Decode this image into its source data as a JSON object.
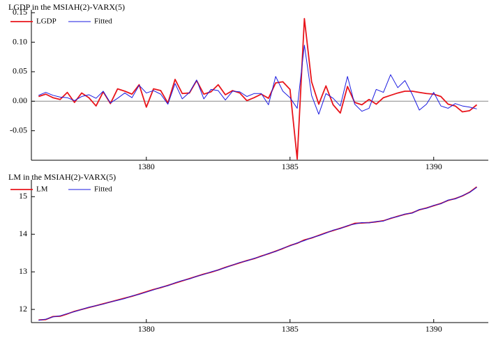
{
  "chart_data": [
    {
      "type": "line",
      "title": "LGDP in the MSIAH(2)-VARX(5)",
      "legend": "upper left",
      "zero_line": true,
      "x": [
        1376.25,
        1376.5,
        1376.75,
        1377,
        1377.25,
        1377.5,
        1377.75,
        1378,
        1378.25,
        1378.5,
        1378.75,
        1379,
        1379.25,
        1379.5,
        1379.75,
        1380,
        1380.25,
        1380.5,
        1380.75,
        1381,
        1381.25,
        1381.5,
        1381.75,
        1382,
        1382.25,
        1382.5,
        1382.75,
        1383,
        1383.25,
        1383.5,
        1383.75,
        1384,
        1384.25,
        1384.5,
        1384.75,
        1385,
        1385.25,
        1385.5,
        1385.75,
        1386,
        1386.25,
        1386.5,
        1386.75,
        1387,
        1387.25,
        1387.5,
        1387.75,
        1388,
        1388.25,
        1388.5,
        1388.75,
        1389,
        1389.25,
        1389.5,
        1389.75,
        1390,
        1390.25,
        1390.5,
        1390.75,
        1391,
        1391.25,
        1391.5
      ],
      "series": [
        {
          "name": "LGDP",
          "color": "#e8141b",
          "values": [
            0.008,
            0.012,
            0.006,
            0.003,
            0.015,
            -0.002,
            0.014,
            0.006,
            -0.008,
            0.016,
            -0.004,
            0.021,
            0.017,
            0.012,
            0.028,
            -0.01,
            0.021,
            0.018,
            -0.003,
            0.037,
            0.013,
            0.014,
            0.035,
            0.012,
            0.016,
            0.028,
            0.011,
            0.018,
            0.014,
            0.001,
            0.006,
            0.012,
            0.005,
            0.031,
            0.033,
            0.02,
            -0.098,
            0.14,
            0.033,
            -0.005,
            0.026,
            -0.006,
            -0.02,
            0.025,
            -0.002,
            -0.006,
            0.003,
            -0.005,
            0.006,
            0.01,
            0.014,
            0.017,
            0.017,
            0.015,
            0.013,
            0.012,
            0.008,
            -0.005,
            -0.008,
            -0.018,
            -0.016,
            -0.006
          ]
        },
        {
          "name": "Fitted",
          "color": "#1a1ae0",
          "values": [
            0.01,
            0.015,
            0.01,
            0.007,
            0.006,
            0.001,
            0.008,
            0.011,
            0.005,
            0.017,
            -0.003,
            0.005,
            0.014,
            0.006,
            0.027,
            0.014,
            0.018,
            0.012,
            -0.005,
            0.03,
            0.004,
            0.015,
            0.036,
            0.004,
            0.02,
            0.018,
            0.002,
            0.017,
            0.016,
            0.008,
            0.013,
            0.013,
            -0.006,
            0.042,
            0.017,
            0.006,
            -0.012,
            0.095,
            0.01,
            -0.022,
            0.013,
            0.005,
            -0.008,
            0.042,
            -0.005,
            -0.017,
            -0.012,
            0.02,
            0.015,
            0.045,
            0.023,
            0.035,
            0.012,
            -0.015,
            -0.005,
            0.015,
            -0.008,
            -0.012,
            -0.004,
            -0.008,
            -0.01,
            -0.013
          ]
        }
      ],
      "xlim": [
        1376,
        1391.9
      ],
      "xticks": [
        1380,
        1385,
        1390
      ],
      "ylim": [
        -0.1,
        0.155
      ],
      "yticks": [
        0.15,
        {
          "value": 0.1,
          "label": "0.10"
        },
        0.05,
        {
          "value": 0,
          "label": "0.00"
        },
        -0.05
      ]
    },
    {
      "type": "line",
      "title": "LM in the MSIAH(2)-VARX(5)",
      "legend": "upper left",
      "zero_line": false,
      "x": [
        1376.25,
        1376.5,
        1376.75,
        1377,
        1377.25,
        1377.5,
        1377.75,
        1378,
        1378.25,
        1378.5,
        1378.75,
        1379,
        1379.25,
        1379.5,
        1379.75,
        1380,
        1380.25,
        1380.5,
        1380.75,
        1381,
        1381.25,
        1381.5,
        1381.75,
        1382,
        1382.25,
        1382.5,
        1382.75,
        1383,
        1383.25,
        1383.5,
        1383.75,
        1384,
        1384.25,
        1384.5,
        1384.75,
        1385,
        1385.25,
        1385.5,
        1385.75,
        1386,
        1386.25,
        1386.5,
        1386.75,
        1387,
        1387.25,
        1387.5,
        1387.75,
        1388,
        1388.25,
        1388.5,
        1388.75,
        1389,
        1389.25,
        1389.5,
        1389.75,
        1390,
        1390.25,
        1390.5,
        1390.75,
        1391,
        1391.25,
        1391.5
      ],
      "series": [
        {
          "name": "LM",
          "color": "#e8141b",
          "values": [
            11.72,
            11.73,
            11.81,
            11.82,
            11.88,
            11.95,
            12.0,
            12.05,
            12.1,
            12.15,
            12.2,
            12.25,
            12.3,
            12.35,
            12.41,
            12.47,
            12.53,
            12.58,
            12.64,
            12.7,
            12.76,
            12.82,
            12.88,
            12.94,
            12.99,
            13.05,
            13.12,
            13.18,
            13.24,
            13.3,
            13.35,
            13.42,
            13.48,
            13.55,
            13.62,
            13.7,
            13.76,
            13.85,
            13.9,
            13.97,
            14.04,
            14.1,
            14.16,
            14.22,
            14.29,
            14.3,
            14.31,
            14.33,
            14.36,
            14.42,
            14.48,
            14.53,
            14.57,
            14.65,
            14.7,
            14.76,
            14.82,
            14.9,
            14.95,
            15.02,
            15.12,
            15.26
          ]
        },
        {
          "name": "Fitted",
          "color": "#1a1ae0",
          "values": [
            11.71,
            11.74,
            11.8,
            11.83,
            11.89,
            11.94,
            12.0,
            12.06,
            12.1,
            12.14,
            12.2,
            12.24,
            12.29,
            12.36,
            12.4,
            12.46,
            12.52,
            12.59,
            12.63,
            12.71,
            12.77,
            12.81,
            12.88,
            12.93,
            13.0,
            13.05,
            13.11,
            13.18,
            13.25,
            13.29,
            13.36,
            13.41,
            13.49,
            13.54,
            13.63,
            13.69,
            13.77,
            13.83,
            13.91,
            13.96,
            14.03,
            14.11,
            14.15,
            14.23,
            14.27,
            14.31,
            14.3,
            14.34,
            14.35,
            14.43,
            14.47,
            14.54,
            14.56,
            14.66,
            14.69,
            14.77,
            14.81,
            14.91,
            14.94,
            15.03,
            15.11,
            15.25
          ]
        }
      ],
      "xlim": [
        1376,
        1391.9
      ],
      "xticks": [
        1380,
        1385,
        1390
      ],
      "ylim": [
        11.65,
        15.45
      ],
      "yticks": [
        12,
        13,
        14,
        15
      ]
    }
  ]
}
